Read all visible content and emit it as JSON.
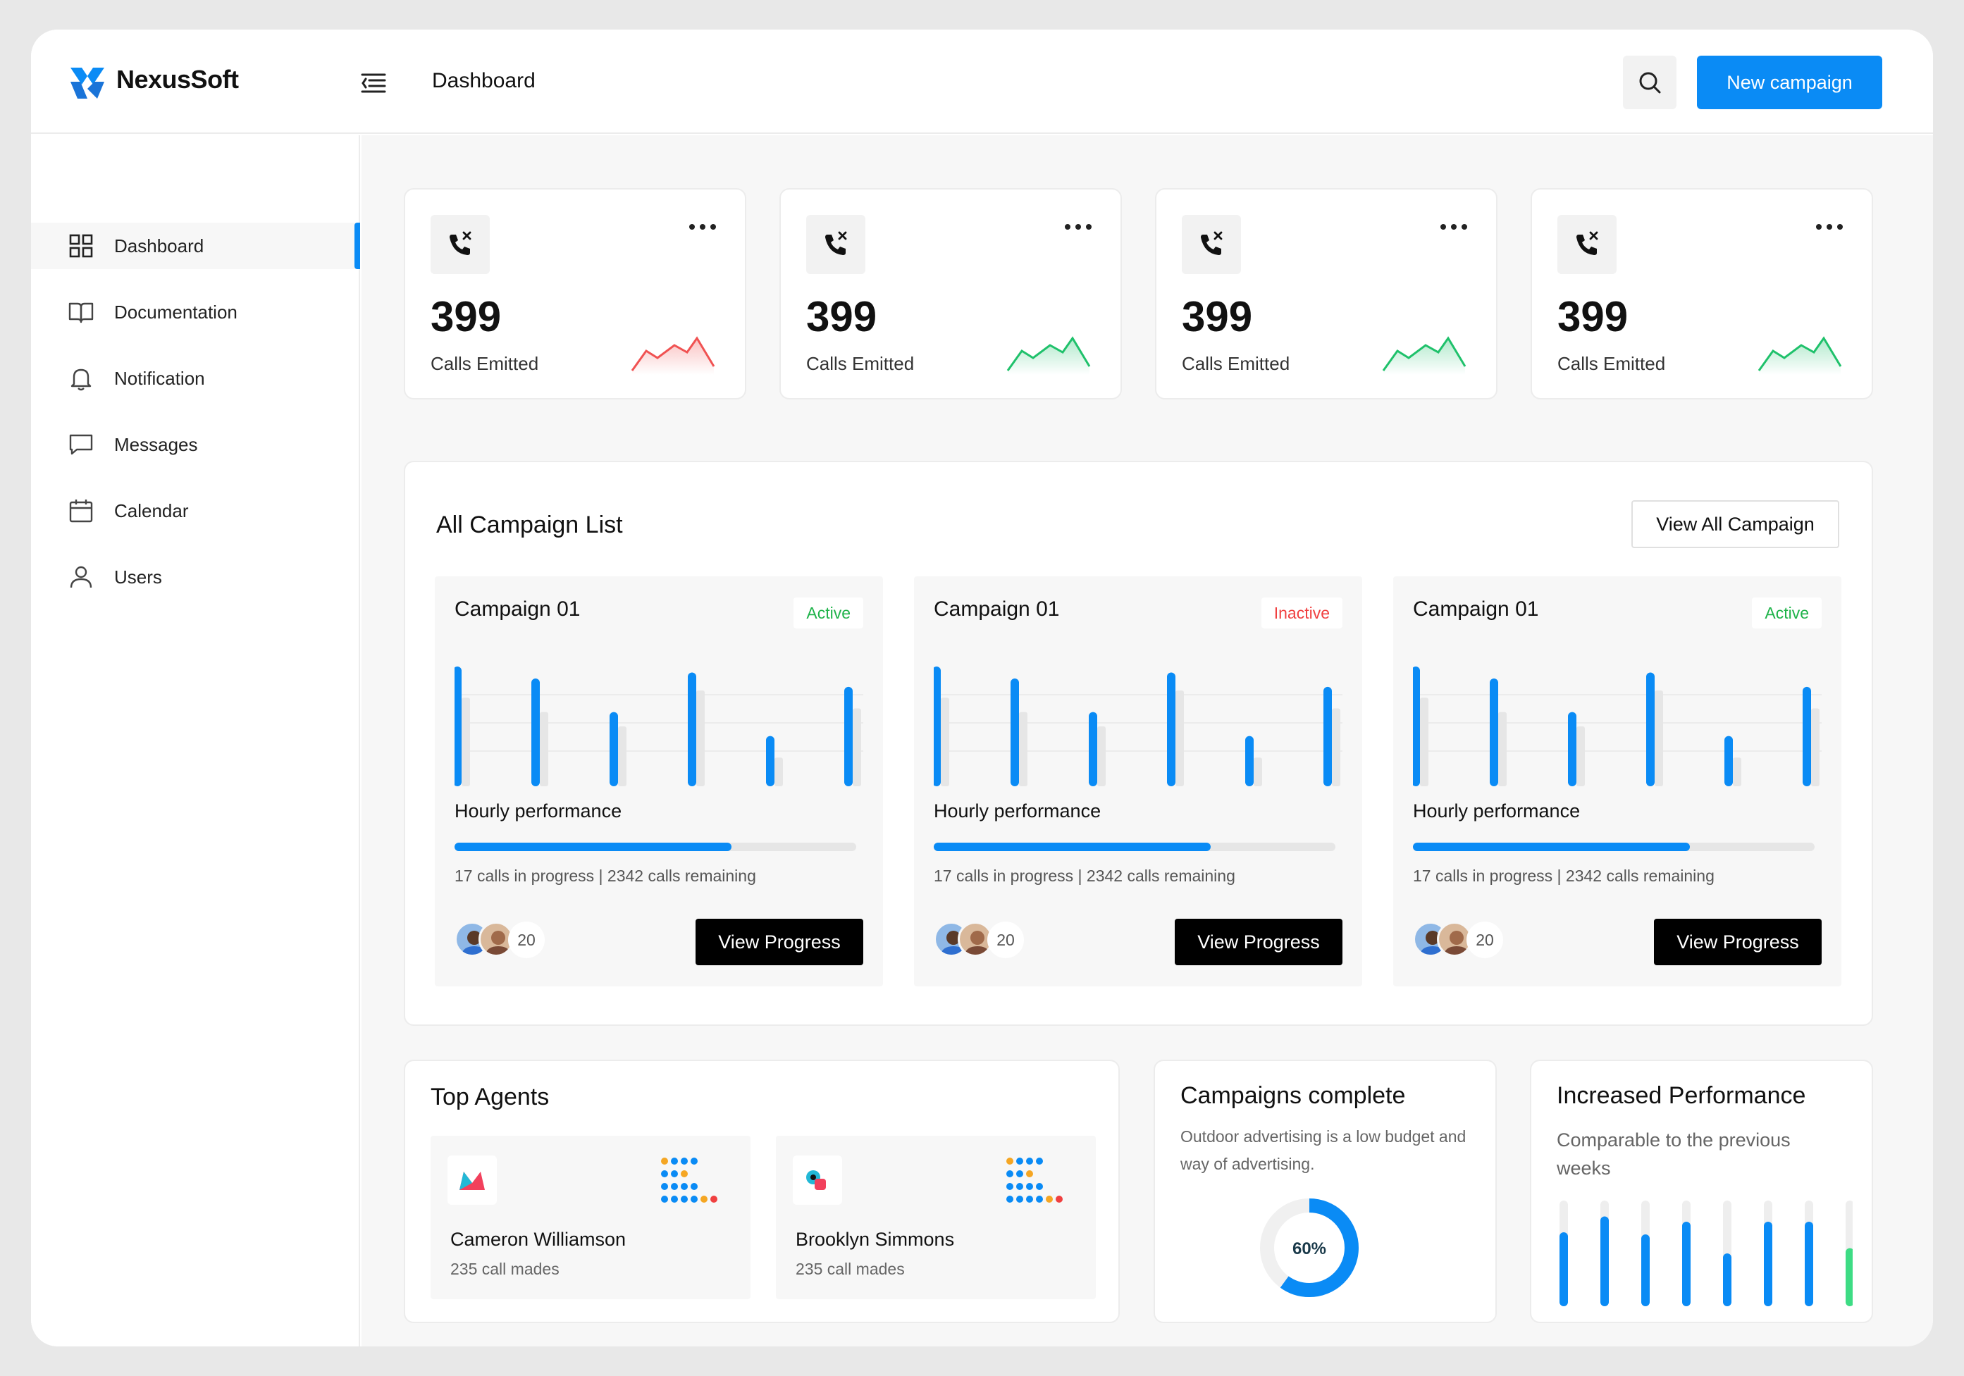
{
  "app": {
    "brand": "NexusSoft",
    "page_title": "Dashboard",
    "new_campaign_label": "New campaign",
    "accent": "#0a8bf5"
  },
  "sidebar": {
    "items": [
      {
        "label": "Dashboard",
        "icon": "grid-icon",
        "active": true
      },
      {
        "label": "Documentation",
        "icon": "book-icon"
      },
      {
        "label": "Notification",
        "icon": "bell-icon"
      },
      {
        "label": "Messages",
        "icon": "message-icon"
      },
      {
        "label": "Calendar",
        "icon": "calendar-icon"
      },
      {
        "label": "Users",
        "icon": "user-icon"
      }
    ]
  },
  "stats": [
    {
      "value": "399",
      "label": "Calls Emitted",
      "trend_color": "#f05252"
    },
    {
      "value": "399",
      "label": "Calls Emitted",
      "trend_color": "#1fc16b"
    },
    {
      "value": "399",
      "label": "Calls Emitted",
      "trend_color": "#1fc16b"
    },
    {
      "value": "399",
      "label": "Calls Emitted",
      "trend_color": "#1fc16b"
    }
  ],
  "campaigns": {
    "title": "All Campaign List",
    "view_all_label": "View All Campaign",
    "items": [
      {
        "name": "Campaign 01",
        "status": "Active",
        "status_color": "#1fb34a",
        "perf_label": "Hourly performance",
        "progress": 0.69,
        "calls_text": "17 calls in progress | 2342 calls remaining",
        "agent_count": "20",
        "button_label": "View Progress"
      },
      {
        "name": "Campaign 01",
        "status": "Inactive",
        "status_color": "#f04040",
        "perf_label": "Hourly performance",
        "progress": 0.69,
        "calls_text": "17 calls in progress | 2342 calls remaining",
        "agent_count": "20",
        "button_label": "View Progress"
      },
      {
        "name": "Campaign 01",
        "status": "Active",
        "status_color": "#1fb34a",
        "perf_label": "Hourly performance",
        "progress": 0.69,
        "calls_text": "17 calls in progress | 2342 calls remaining",
        "agent_count": "20",
        "button_label": "View Progress"
      }
    ]
  },
  "top_agents": {
    "title": "Top Agents",
    "items": [
      {
        "name": "Cameron Williamson",
        "sub": "235 call mades"
      },
      {
        "name": "Brooklyn Simmons",
        "sub": "235 call mades"
      }
    ]
  },
  "campaigns_complete": {
    "title": "Campaigns complete",
    "desc": "Outdoor advertising is a low budget and way of advertising.",
    "percent_label": "60%",
    "percent": 0.6
  },
  "increased_performance": {
    "title": "Increased Performance",
    "desc": "Comparable to the previous weeks",
    "levels": [
      0.7,
      0.85,
      0.68,
      0.8,
      0.5,
      0.8,
      0.8,
      0.55
    ]
  }
}
